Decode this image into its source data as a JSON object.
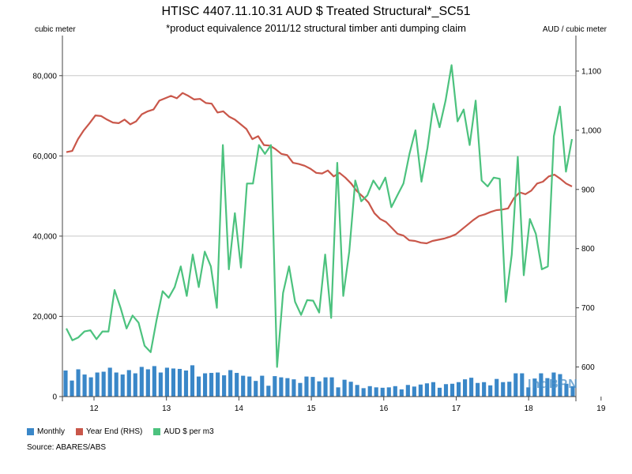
{
  "title": "HTISC 4407.11.10.31 AUD $ Treated Structural*_SC51",
  "subtitle": "*product equivalence 2011/12 structural timber anti dumping claim",
  "left_unit": "cubic meter",
  "right_unit": "AUD / cubic meter",
  "source": "Source: ABARES/ABS",
  "watermark": "IndBPN",
  "colors": {
    "monthly": "#3a87c8",
    "year_end": "#c9574a",
    "aud_per_m3": "#4cc27e",
    "grid": "#c8c8c8",
    "axis": "#444444"
  },
  "chart_data": {
    "type": "bar",
    "x_tick_labels": [
      "12",
      "13",
      "14",
      "15",
      "16",
      "17",
      "18",
      "19"
    ],
    "left_axis": {
      "range": [
        0,
        90000
      ],
      "ticks": [
        "0",
        "20,000",
        "40,000",
        "60,000",
        "80,000"
      ]
    },
    "right_axis": {
      "range": [
        550,
        1160
      ],
      "ticks": [
        "600",
        "700",
        "800",
        "900",
        "1,000",
        "1,100"
      ]
    },
    "grid": true,
    "legend_position": "bottom-left",
    "series": [
      {
        "name": "Monthly",
        "type": "bar",
        "axis": "left",
        "values": [
          6500,
          4000,
          6800,
          5500,
          4800,
          6000,
          6200,
          7200,
          6000,
          5500,
          6600,
          5800,
          7400,
          6800,
          7600,
          6000,
          7200,
          7000,
          6900,
          6500,
          7800,
          5000,
          5800,
          5900,
          6000,
          5300,
          6600,
          5900,
          5200,
          5000,
          3900,
          5200,
          2700,
          5100,
          4800,
          4600,
          4300,
          3400,
          5000,
          4900,
          3800,
          4800,
          4800,
          2300,
          4200,
          3700,
          2900,
          2100,
          2600,
          2300,
          2200,
          2300,
          2600,
          1800,
          2900,
          2500,
          3000,
          3300,
          3600,
          2200,
          3100,
          3200,
          3600,
          4300,
          4700,
          3400,
          3600,
          2800,
          4400,
          3600,
          3700,
          5800,
          5800,
          2300,
          4500,
          5800,
          4600,
          6000,
          5600,
          3200,
          2600
        ]
      },
      {
        "name": "Year End (RHS)",
        "type": "line",
        "axis": "right",
        "values": [
          963,
          965,
          985,
          1000,
          1012,
          1025,
          1024,
          1018,
          1013,
          1012,
          1018,
          1010,
          1015,
          1027,
          1032,
          1035,
          1050,
          1054,
          1058,
          1054,
          1063,
          1058,
          1052,
          1053,
          1046,
          1045,
          1030,
          1032,
          1023,
          1018,
          1010,
          1002,
          985,
          990,
          975,
          974,
          968,
          960,
          958,
          945,
          943,
          940,
          935,
          928,
          927,
          932,
          922,
          928,
          920,
          910,
          897,
          888,
          878,
          860,
          850,
          845,
          835,
          825,
          822,
          814,
          813,
          810,
          809,
          813,
          815,
          817,
          820,
          824,
          832,
          840,
          848,
          855,
          858,
          862,
          865,
          866,
          868,
          885,
          895,
          892,
          898,
          910,
          913,
          922,
          925,
          918,
          910,
          905
        ]
      },
      {
        "name": "AUD $ per m3",
        "type": "line",
        "axis": "right",
        "values": [
          665,
          645,
          650,
          660,
          662,
          647,
          660,
          660,
          730,
          700,
          665,
          687,
          675,
          636,
          625,
          680,
          728,
          717,
          735,
          770,
          720,
          790,
          735,
          795,
          770,
          700,
          975,
          765,
          860,
          768,
          910,
          910,
          975,
          960,
          975,
          600,
          725,
          770,
          710,
          688,
          713,
          712,
          692,
          790,
          683,
          945,
          720,
          795,
          915,
          880,
          890,
          915,
          900,
          920,
          870,
          890,
          910,
          960,
          1000,
          913,
          970,
          1045,
          1005,
          1050,
          1110,
          1015,
          1035,
          975,
          1050,
          915,
          905,
          920,
          918,
          710,
          790,
          955,
          755,
          850,
          825,
          765,
          770,
          990,
          1040,
          930,
          985
        ]
      }
    ]
  }
}
